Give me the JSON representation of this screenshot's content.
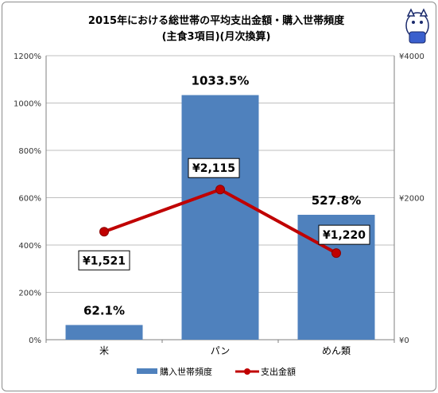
{
  "chart_data": {
    "type": "bar",
    "title_line1": "2015年における総世帯の平均支出金額・購入世帯頻度",
    "title_line2": "(主食3項目)(月次換算)",
    "categories": [
      "米",
      "パン",
      "めん類"
    ],
    "series": [
      {
        "name": "購入世帯頻度",
        "type": "bar",
        "axis": "left",
        "values": [
          62.1,
          1033.5,
          527.8
        ],
        "labels": [
          "62.1%",
          "1033.5%",
          "527.8%"
        ],
        "color": "#4f81bd"
      },
      {
        "name": "支出金額",
        "type": "line",
        "axis": "right",
        "values": [
          1521,
          2115,
          1220
        ],
        "labels": [
          "¥1,521",
          "¥2,115",
          "¥1,220"
        ],
        "color": "#c00000"
      }
    ],
    "y_left": {
      "ylim": [
        0,
        1200
      ],
      "ticks": [
        0,
        200,
        400,
        600,
        800,
        1000,
        1200
      ],
      "tick_labels": [
        "0%",
        "200%",
        "400%",
        "600%",
        "800%",
        "1000%",
        "1200%"
      ]
    },
    "y_right": {
      "ylim": [
        0,
        4000
      ],
      "ticks": [
        0,
        2000,
        4000
      ],
      "tick_labels": [
        "¥0",
        "¥2000",
        "¥4000"
      ]
    },
    "grid": true,
    "legend_position": "bottom"
  }
}
